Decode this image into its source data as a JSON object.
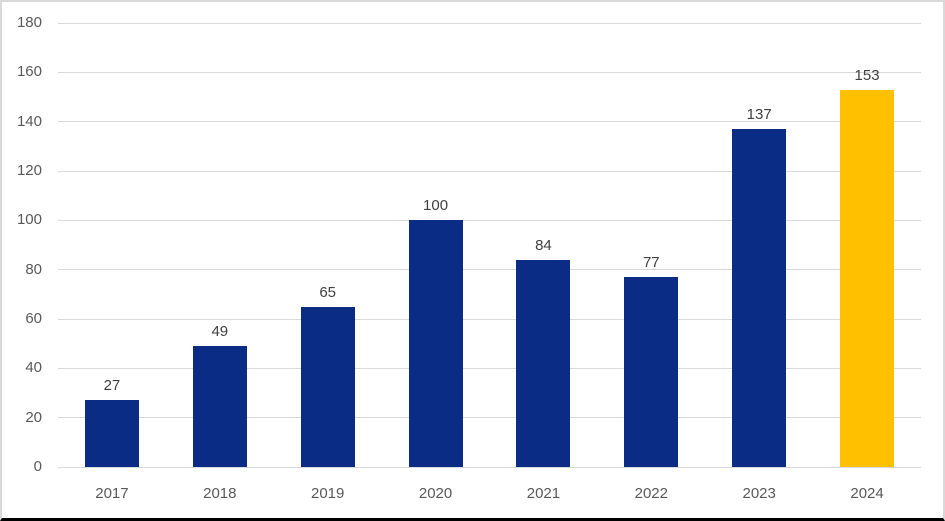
{
  "chart_data": {
    "type": "bar",
    "categories": [
      "2017",
      "2018",
      "2019",
      "2020",
      "2021",
      "2022",
      "2023",
      "2024"
    ],
    "values": [
      27,
      49,
      65,
      100,
      84,
      77,
      137,
      153
    ],
    "bar_colors": [
      "#0b2c84",
      "#0b2c84",
      "#0b2c84",
      "#0b2c84",
      "#0b2c84",
      "#0b2c84",
      "#0b2c84",
      "#ffc000"
    ],
    "value_labels": [
      "27",
      "49",
      "65",
      "100",
      "84",
      "77",
      "137",
      "153"
    ],
    "ylim": [
      0,
      180
    ],
    "ytick_step": 20,
    "y_ticks": [
      0,
      20,
      40,
      60,
      80,
      100,
      120,
      140,
      160,
      180
    ],
    "grid": true,
    "legend": "none",
    "colors": {
      "default_bar": "#0b2c84",
      "highlight_bar": "#ffc000",
      "gridline": "#d9d9d9",
      "axis_label": "#595959",
      "value_label": "#404040",
      "frame_border": "#d9d9d9",
      "bottom_rule": "#000000",
      "background": "#ffffff"
    }
  }
}
